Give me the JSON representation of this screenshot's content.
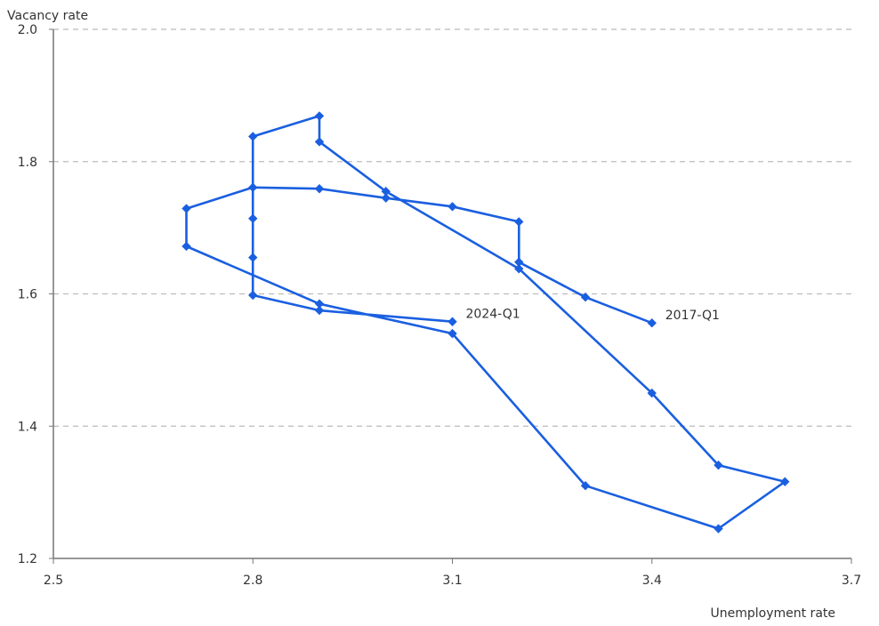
{
  "chart_data": {
    "type": "line",
    "title": "",
    "xlabel": "Unemployment rate",
    "ylabel": "Vacancy rate",
    "xlim": [
      2.5,
      3.7
    ],
    "ylim": [
      1.2,
      2.0
    ],
    "x_ticks": [
      "2.5",
      "2.8",
      "3.1",
      "3.4",
      "3.7"
    ],
    "y_ticks": [
      "1.2",
      "1.4",
      "1.6",
      "1.8",
      "2.0"
    ],
    "grid": "horizontal-dashed",
    "legend": "none",
    "series": [
      {
        "color": "#1a5fe0",
        "points": [
          {
            "x": 3.4,
            "y": 1.556
          },
          {
            "x": 3.3,
            "y": 1.595
          },
          {
            "x": 3.2,
            "y": 1.648
          },
          {
            "x": 3.2,
            "y": 1.709
          },
          {
            "x": 3.1,
            "y": 1.732
          },
          {
            "x": 3.0,
            "y": 1.745
          },
          {
            "x": 2.9,
            "y": 1.759
          },
          {
            "x": 2.8,
            "y": 1.761
          },
          {
            "x": 2.7,
            "y": 1.729
          },
          {
            "x": 2.7,
            "y": 1.672
          },
          {
            "x": 2.9,
            "y": 1.585
          },
          {
            "x": 3.1,
            "y": 1.54
          },
          {
            "x": 3.3,
            "y": 1.31
          },
          {
            "x": 3.5,
            "y": 1.245
          },
          {
            "x": 3.6,
            "y": 1.316
          },
          {
            "x": 3.5,
            "y": 1.341
          },
          {
            "x": 3.4,
            "y": 1.45
          },
          {
            "x": 3.2,
            "y": 1.638
          },
          {
            "x": 3.0,
            "y": 1.755
          },
          {
            "x": 2.9,
            "y": 1.83
          },
          {
            "x": 2.9,
            "y": 1.869
          },
          {
            "x": 2.8,
            "y": 1.838
          },
          {
            "x": 2.8,
            "y": 1.714
          },
          {
            "x": 2.8,
            "y": 1.655
          },
          {
            "x": 2.8,
            "y": 1.598
          },
          {
            "x": 2.9,
            "y": 1.575
          },
          {
            "x": 3.1,
            "y": 1.558
          }
        ]
      }
    ],
    "annotations": [
      {
        "text": "2017-Q1",
        "x": 3.4,
        "y": 1.556
      },
      {
        "text": "2024-Q1",
        "x": 3.1,
        "y": 1.558
      }
    ]
  }
}
